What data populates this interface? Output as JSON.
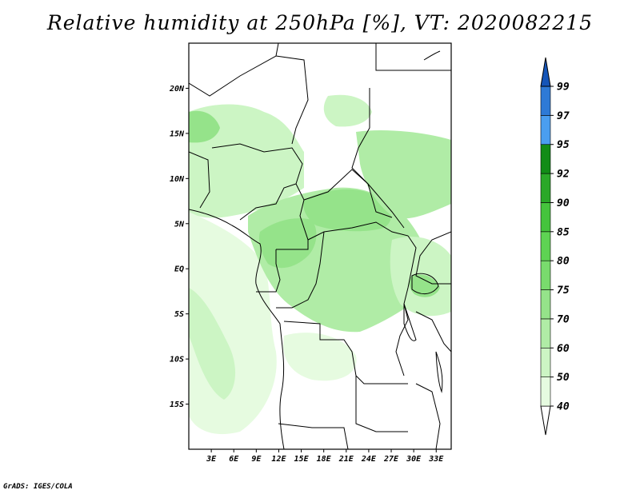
{
  "title": "Relative humidity at 250hPa [%], VT: 2020082215",
  "credit": "GrADS: IGES/COLA",
  "map": {
    "lon_range": [
      0,
      35
    ],
    "lat_range": [
      -20,
      25
    ],
    "lon_ticks": [
      "3E",
      "6E",
      "9E",
      "12E",
      "15E",
      "18E",
      "21E",
      "24E",
      "27E",
      "30E",
      "33E"
    ],
    "lat_ticks": [
      "20N",
      "15N",
      "10N",
      "5N",
      "EQ",
      "5S",
      "10S",
      "15S"
    ]
  },
  "colorbar": {
    "levels": [
      "40",
      "50",
      "60",
      "70",
      "75",
      "80",
      "85",
      "90",
      "92",
      "95",
      "97",
      "99"
    ],
    "colors": [
      "#ffffff",
      "#e6fbe0",
      "#ccf5c4",
      "#b0eca6",
      "#95e38a",
      "#79db6d",
      "#5ed353",
      "#45c43d",
      "#2aa828",
      "#128c17",
      "#4a9ef0",
      "#2e7ad6",
      "#1555b8"
    ]
  }
}
